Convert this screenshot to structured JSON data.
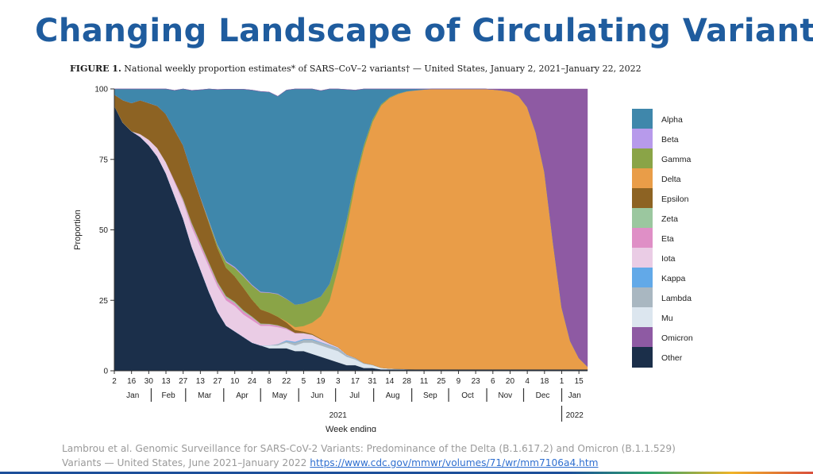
{
  "slide": {
    "title": "Changing Landscape of Circulating Variants",
    "figure_label": "FIGURE 1.",
    "figure_caption": " National weekly proportion estimates* of SARS–CoV–2 variants† — United States, January 2, 2021–January 22, 2022",
    "citation_line1": "Lambrou et al. Genomic Surveillance for SARS-CoV-2 Variants: Predominance of the Delta (B.1.617.2) and Omicron (B.1.1.529)",
    "citation_line2": "Variants — United States, June 2021–January 2022 ",
    "citation_link": "https://www.cdc.gov/mmwr/volumes/71/wr/mm7106a4.htm"
  },
  "chart_data": {
    "type": "area",
    "stacked": true,
    "ylabel": "Proportion",
    "xlabel": "Week ending",
    "ylim": [
      0,
      100
    ],
    "yticks": [
      0,
      25,
      50,
      75,
      100
    ],
    "week_ticks": [
      "2",
      "16",
      "30",
      "13",
      "27",
      "13",
      "27",
      "10",
      "24",
      "8",
      "22",
      "5",
      "19",
      "3",
      "17",
      "31",
      "14",
      "28",
      "11",
      "25",
      "9",
      "23",
      "6",
      "20",
      "4",
      "18",
      "1",
      "15"
    ],
    "months": [
      "Jan",
      "Feb",
      "Mar",
      "Apr",
      "May",
      "Jun",
      "Jul",
      "Aug",
      "Sep",
      "Oct",
      "Nov",
      "Dec",
      "Jan"
    ],
    "year_labels": [
      "2021",
      "2022"
    ],
    "x": [
      "2021-01-02",
      "2021-01-09",
      "2021-01-16",
      "2021-01-23",
      "2021-01-30",
      "2021-02-06",
      "2021-02-13",
      "2021-02-20",
      "2021-02-27",
      "2021-03-06",
      "2021-03-13",
      "2021-03-20",
      "2021-03-27",
      "2021-04-03",
      "2021-04-10",
      "2021-04-17",
      "2021-04-24",
      "2021-05-01",
      "2021-05-08",
      "2021-05-15",
      "2021-05-22",
      "2021-05-29",
      "2021-06-05",
      "2021-06-12",
      "2021-06-19",
      "2021-06-26",
      "2021-07-03",
      "2021-07-10",
      "2021-07-17",
      "2021-07-24",
      "2021-07-31",
      "2021-08-07",
      "2021-08-14",
      "2021-08-21",
      "2021-08-28",
      "2021-09-04",
      "2021-09-11",
      "2021-09-18",
      "2021-09-25",
      "2021-10-02",
      "2021-10-09",
      "2021-10-16",
      "2021-10-23",
      "2021-10-30",
      "2021-11-06",
      "2021-11-13",
      "2021-11-20",
      "2021-11-27",
      "2021-12-04",
      "2021-12-11",
      "2021-12-18",
      "2021-12-25",
      "2022-01-01",
      "2022-01-08",
      "2022-01-15",
      "2022-01-22"
    ],
    "series": [
      {
        "name": "Other",
        "color": "#1b2f4a",
        "values": [
          94,
          88,
          85,
          83,
          80,
          76,
          70,
          62,
          54,
          44,
          36,
          28,
          21,
          16,
          14,
          12,
          10,
          9,
          8,
          8,
          8,
          7,
          7,
          6,
          5,
          4,
          3,
          2,
          2,
          1,
          1,
          0.5,
          0.5,
          0.5,
          0.5,
          0.5,
          0.5,
          0.5,
          0.5,
          0.5,
          0.5,
          0.5,
          0.5,
          0.5,
          0.5,
          0.5,
          0.5,
          0.5,
          0.5,
          0.5,
          0.5,
          0.5,
          0.5,
          0.5,
          0.5,
          0.5
        ]
      },
      {
        "name": "Mu",
        "color": "#dce6ef",
        "values": [
          0,
          0,
          0,
          0,
          0,
          0,
          0,
          0,
          0,
          0,
          0,
          0,
          0,
          0,
          0,
          0,
          0,
          0,
          1,
          1,
          2,
          2,
          3,
          4,
          4,
          4,
          4,
          3,
          2,
          1.5,
          1,
          0.5,
          0.3,
          0.2,
          0.1,
          0,
          0,
          0,
          0,
          0,
          0,
          0,
          0,
          0,
          0,
          0,
          0,
          0,
          0,
          0,
          0,
          0,
          0,
          0,
          0,
          0
        ]
      },
      {
        "name": "Lambda",
        "color": "#a9b7c1",
        "values": [
          0,
          0,
          0,
          0,
          0,
          0,
          0,
          0,
          0,
          0,
          0,
          0,
          0,
          0,
          0,
          0,
          0,
          0,
          0,
          0.5,
          0.5,
          1,
          1,
          1,
          1,
          1,
          1,
          0.5,
          0.5,
          0.3,
          0.2,
          0.1,
          0,
          0,
          0,
          0,
          0,
          0,
          0,
          0,
          0,
          0,
          0,
          0,
          0,
          0,
          0,
          0,
          0,
          0,
          0,
          0,
          0,
          0,
          0,
          0
        ]
      },
      {
        "name": "Kappa",
        "color": "#62a9e8",
        "values": [
          0,
          0,
          0,
          0,
          0,
          0,
          0,
          0,
          0,
          0,
          0,
          0,
          0,
          0,
          0,
          0,
          0,
          0,
          0,
          0,
          0.3,
          0.3,
          0.3,
          0.3,
          0.2,
          0.2,
          0.1,
          0.1,
          0,
          0,
          0,
          0,
          0,
          0,
          0,
          0,
          0,
          0,
          0,
          0,
          0,
          0,
          0,
          0,
          0,
          0,
          0,
          0,
          0,
          0,
          0,
          0,
          0,
          0,
          0,
          0
        ]
      },
      {
        "name": "Iota",
        "color": "#eacce5",
        "values": [
          0,
          0,
          0,
          1,
          2,
          3,
          4,
          5,
          6,
          7,
          8,
          9,
          9,
          9,
          9,
          8,
          8,
          7,
          7,
          6,
          4,
          3,
          2,
          1.5,
          1,
          0.5,
          0.3,
          0.2,
          0.1,
          0,
          0,
          0,
          0,
          0,
          0,
          0,
          0,
          0,
          0,
          0,
          0,
          0,
          0,
          0,
          0,
          0,
          0,
          0,
          0,
          0,
          0,
          0,
          0,
          0,
          0,
          0
        ]
      },
      {
        "name": "Eta",
        "color": "#df8fc6",
        "values": [
          0,
          0,
          0,
          0,
          0,
          0,
          0,
          0.5,
          0.5,
          1,
          1,
          1,
          1,
          1,
          1,
          1,
          1,
          0.5,
          0.5,
          0.5,
          0.3,
          0.2,
          0.1,
          0,
          0,
          0,
          0,
          0,
          0,
          0,
          0,
          0,
          0,
          0,
          0,
          0,
          0,
          0,
          0,
          0,
          0,
          0,
          0,
          0,
          0,
          0,
          0,
          0,
          0,
          0,
          0,
          0,
          0,
          0,
          0,
          0
        ]
      },
      {
        "name": "Zeta",
        "color": "#9bc79f",
        "values": [
          0,
          0,
          0,
          0,
          0,
          0,
          0,
          0,
          0.5,
          0.5,
          0.5,
          0.5,
          0.5,
          0.5,
          0.5,
          0.5,
          0.3,
          0.3,
          0.2,
          0.2,
          0.1,
          0,
          0,
          0,
          0,
          0,
          0,
          0,
          0,
          0,
          0,
          0,
          0,
          0,
          0,
          0,
          0,
          0,
          0,
          0,
          0,
          0,
          0,
          0,
          0,
          0,
          0,
          0,
          0,
          0,
          0,
          0,
          0,
          0,
          0,
          0
        ]
      },
      {
        "name": "Epsilon",
        "color": "#8d6323",
        "values": [
          4,
          8,
          10,
          12,
          13,
          15,
          17,
          18,
          19,
          18,
          16,
          14,
          12,
          10,
          9,
          8,
          6,
          5,
          4,
          3,
          2,
          1,
          0.5,
          0.3,
          0.2,
          0.1,
          0,
          0,
          0,
          0,
          0,
          0,
          0,
          0,
          0,
          0,
          0,
          0,
          0,
          0,
          0,
          0,
          0,
          0,
          0,
          0,
          0,
          0,
          0,
          0,
          0,
          0,
          0,
          0,
          0,
          0
        ]
      },
      {
        "name": "Delta",
        "color": "#e99d48",
        "values": [
          0,
          0,
          0,
          0,
          0,
          0,
          0,
          0,
          0,
          0,
          0,
          0,
          0,
          0,
          0,
          0,
          0,
          0,
          0,
          0,
          0.3,
          1,
          2,
          4,
          8,
          15,
          28,
          45,
          62,
          76,
          86,
          93,
          96,
          97.5,
          98.5,
          99,
          99.3,
          99.5,
          99.5,
          99.5,
          99.5,
          99.5,
          99.5,
          99.5,
          99.3,
          99,
          98.5,
          97,
          93,
          84,
          70,
          45,
          22,
          10,
          4,
          1
        ]
      },
      {
        "name": "Gamma",
        "color": "#8aa447",
        "values": [
          0,
          0,
          0,
          0,
          0,
          0,
          0,
          0,
          0,
          0,
          0,
          0.5,
          1,
          2,
          3,
          4,
          5,
          6,
          7,
          8,
          8,
          8,
          8,
          8,
          7,
          6,
          5,
          3,
          2,
          1.5,
          1,
          0.5,
          0.3,
          0.2,
          0.1,
          0,
          0,
          0,
          0,
          0,
          0,
          0,
          0,
          0,
          0,
          0,
          0,
          0,
          0,
          0,
          0,
          0,
          0,
          0,
          0,
          0
        ]
      },
      {
        "name": "Beta",
        "color": "#b79aeb",
        "values": [
          0,
          0,
          0,
          0,
          0,
          0,
          0,
          0,
          0,
          0,
          0.2,
          0.3,
          0.3,
          0.4,
          0.4,
          0.4,
          0.3,
          0.3,
          0.2,
          0.2,
          0.1,
          0,
          0,
          0,
          0,
          0,
          0,
          0,
          0,
          0,
          0,
          0,
          0,
          0,
          0,
          0,
          0,
          0,
          0,
          0,
          0,
          0,
          0,
          0,
          0,
          0,
          0,
          0,
          0,
          0,
          0,
          0,
          0,
          0,
          0,
          0
        ]
      },
      {
        "name": "Alpha",
        "color": "#3f87ab",
        "values": [
          2,
          4,
          5,
          4,
          5,
          6,
          9,
          14,
          20,
          29,
          38,
          47,
          55,
          61,
          63,
          66,
          69,
          71,
          71,
          70,
          74,
          77,
          77,
          75,
          73,
          70,
          59,
          46,
          31,
          19.7,
          10.8,
          5.4,
          2.9,
          1.6,
          0.8,
          0.5,
          0.2,
          0,
          0,
          0,
          0,
          0,
          0,
          0,
          0,
          0,
          0,
          0,
          0,
          0,
          0,
          0,
          0,
          0,
          0,
          0
        ]
      },
      {
        "name": "Omicron",
        "color": "#8e5aa3",
        "values": [
          0,
          0,
          0,
          0,
          0,
          0,
          0,
          0,
          0,
          0,
          0,
          0,
          0,
          0,
          0,
          0,
          0,
          0,
          0,
          0,
          0,
          0,
          0,
          0,
          0,
          0,
          0,
          0,
          0,
          0,
          0,
          0,
          0,
          0,
          0,
          0,
          0,
          0,
          0,
          0,
          0,
          0,
          0,
          0,
          0.2,
          0.5,
          1,
          2.5,
          6.5,
          15.5,
          29.5,
          54.5,
          77.5,
          89.5,
          95.5,
          98.5
        ]
      }
    ],
    "legend_order": [
      "Alpha",
      "Beta",
      "Gamma",
      "Delta",
      "Epsilon",
      "Zeta",
      "Eta",
      "Iota",
      "Kappa",
      "Lambda",
      "Mu",
      "Omicron",
      "Other"
    ],
    "legend_position": "right"
  }
}
